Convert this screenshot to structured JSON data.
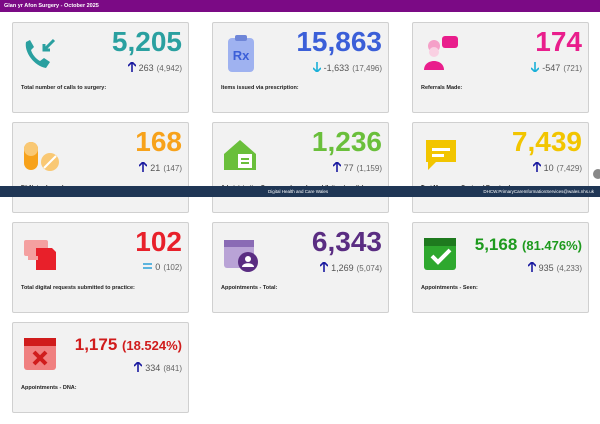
{
  "header": {
    "title": "Glan yr Afon Surgery - October 2025"
  },
  "cards": [
    {
      "value": "5,205",
      "trend": "up",
      "change": "263",
      "previous": "(4,942)",
      "label": "Total number of calls to surgery:",
      "color": "#2aa0a0"
    },
    {
      "value": "15,863",
      "trend": "down",
      "change": "-1,633",
      "previous": "(17,496)",
      "label": "Items issued via prescription:",
      "color": "#3b5fd8"
    },
    {
      "value": "174",
      "trend": "down",
      "change": "-547",
      "previous": "(721)",
      "label": "Referrals Made:",
      "color": "#e91e8c"
    },
    {
      "value": "168",
      "trend": "up",
      "change": "21",
      "previous": "(147)",
      "label": "Fit Notes Issued:",
      "color": "#f7a21b"
    },
    {
      "value": "1,236",
      "trend": "up",
      "change": "77",
      "previous": "(1,159)",
      "label": "Administrative Correspondence Issued (letters/emails):",
      "color": "#6abf3b"
    },
    {
      "value": "7,439",
      "trend": "up",
      "change": "10",
      "previous": "(7,429)",
      "label": "Text Messages Sent and Received:",
      "color": "#f2c500"
    },
    {
      "value": "102",
      "trend": "flat",
      "change": "0",
      "previous": "(102)",
      "label": "Total digital requests submitted to practice:",
      "color": "#e8202a"
    },
    {
      "value": "6,343",
      "trend": "up",
      "change": "1,269",
      "previous": "(5,074)",
      "label": "Appointments - Total:",
      "color": "#5a2d82"
    },
    {
      "value": "5,168",
      "percent": "(81.476%)",
      "trend": "up",
      "change": "935",
      "previous": "(4,233)",
      "label": "Appointments - Seen:",
      "color": "#1e9a1e"
    },
    {
      "value": "1,175",
      "percent": "(18.524%)",
      "trend": "up",
      "change": "334",
      "previous": "(841)",
      "label": "Appointments - DNA:",
      "color": "#d01c1c"
    }
  ],
  "footer": {
    "left": "Digital Health and Care Wales",
    "right": "DHCW.PrimaryCareInformationServices@wales.nhs.uk"
  }
}
